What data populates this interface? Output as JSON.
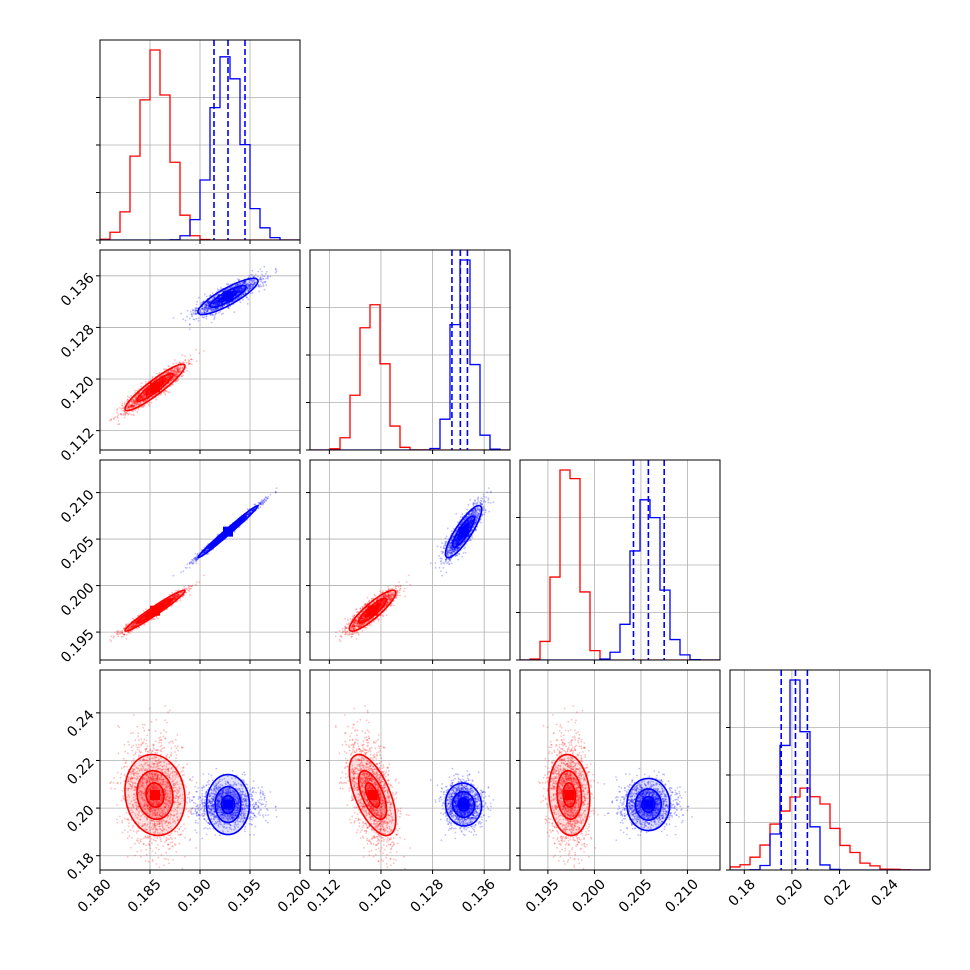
{
  "chart_data": {
    "type": "corner",
    "title": "",
    "parameters": [
      {
        "name": "",
        "range": [
          0.18,
          0.2
        ],
        "ticks": [
          0.18,
          0.185,
          0.19,
          0.195,
          0.2
        ],
        "tick_labels": [
          "0.180",
          "0.185",
          "0.190",
          "0.195",
          "0.200"
        ]
      },
      {
        "name": "",
        "range": [
          0.109,
          0.14
        ],
        "ticks": [
          0.112,
          0.12,
          0.128,
          0.136
        ],
        "tick_labels": [
          "0.112",
          "0.120",
          "0.128",
          "0.136"
        ]
      },
      {
        "name": "",
        "range": [
          0.192,
          0.2135
        ],
        "ticks": [
          0.195,
          0.2,
          0.205,
          0.21
        ],
        "tick_labels": [
          "0.195",
          "0.200",
          "0.205",
          "0.210"
        ]
      },
      {
        "name": "",
        "range": [
          0.174,
          0.258
        ],
        "ticks": [
          0.18,
          0.2,
          0.22,
          0.24
        ],
        "tick_labels": [
          "0.18",
          "0.20",
          "0.22",
          "0.24"
        ]
      }
    ],
    "series": [
      {
        "name": "",
        "color": "#ff0000",
        "means": [
          0.1855,
          0.1187,
          0.1973,
          0.2055
        ],
        "sds": [
          0.0015,
          0.0018,
          0.0011,
          0.0085
        ],
        "correlations": [
          [
            0,
            1,
            0.92
          ],
          [
            0,
            2,
            0.97
          ],
          [
            1,
            2,
            0.88
          ],
          [
            0,
            3,
            -0.1
          ],
          [
            1,
            3,
            -0.6
          ],
          [
            2,
            3,
            -0.1
          ]
        ]
      },
      {
        "name": "",
        "color": "#0000ff",
        "means": [
          0.1928,
          0.1328,
          0.2058,
          0.2015
        ],
        "sds": [
          0.0015,
          0.0014,
          0.0014,
          0.0045
        ],
        "correlations": [
          [
            0,
            1,
            0.85
          ],
          [
            0,
            2,
            0.99
          ],
          [
            1,
            2,
            0.85
          ],
          [
            0,
            3,
            0.0
          ],
          [
            1,
            3,
            -0.05
          ],
          [
            2,
            3,
            0.0
          ]
        ],
        "quantile_lines": [
          [
            0.1914,
            0.1928,
            0.1945
          ],
          [
            0.131,
            0.1323,
            0.1334
          ],
          [
            0.2042,
            0.2058,
            0.2075
          ],
          [
            0.1955,
            0.2015,
            0.2065
          ]
        ]
      }
    ],
    "grid": true,
    "quantile_linestyle": "dashed"
  }
}
